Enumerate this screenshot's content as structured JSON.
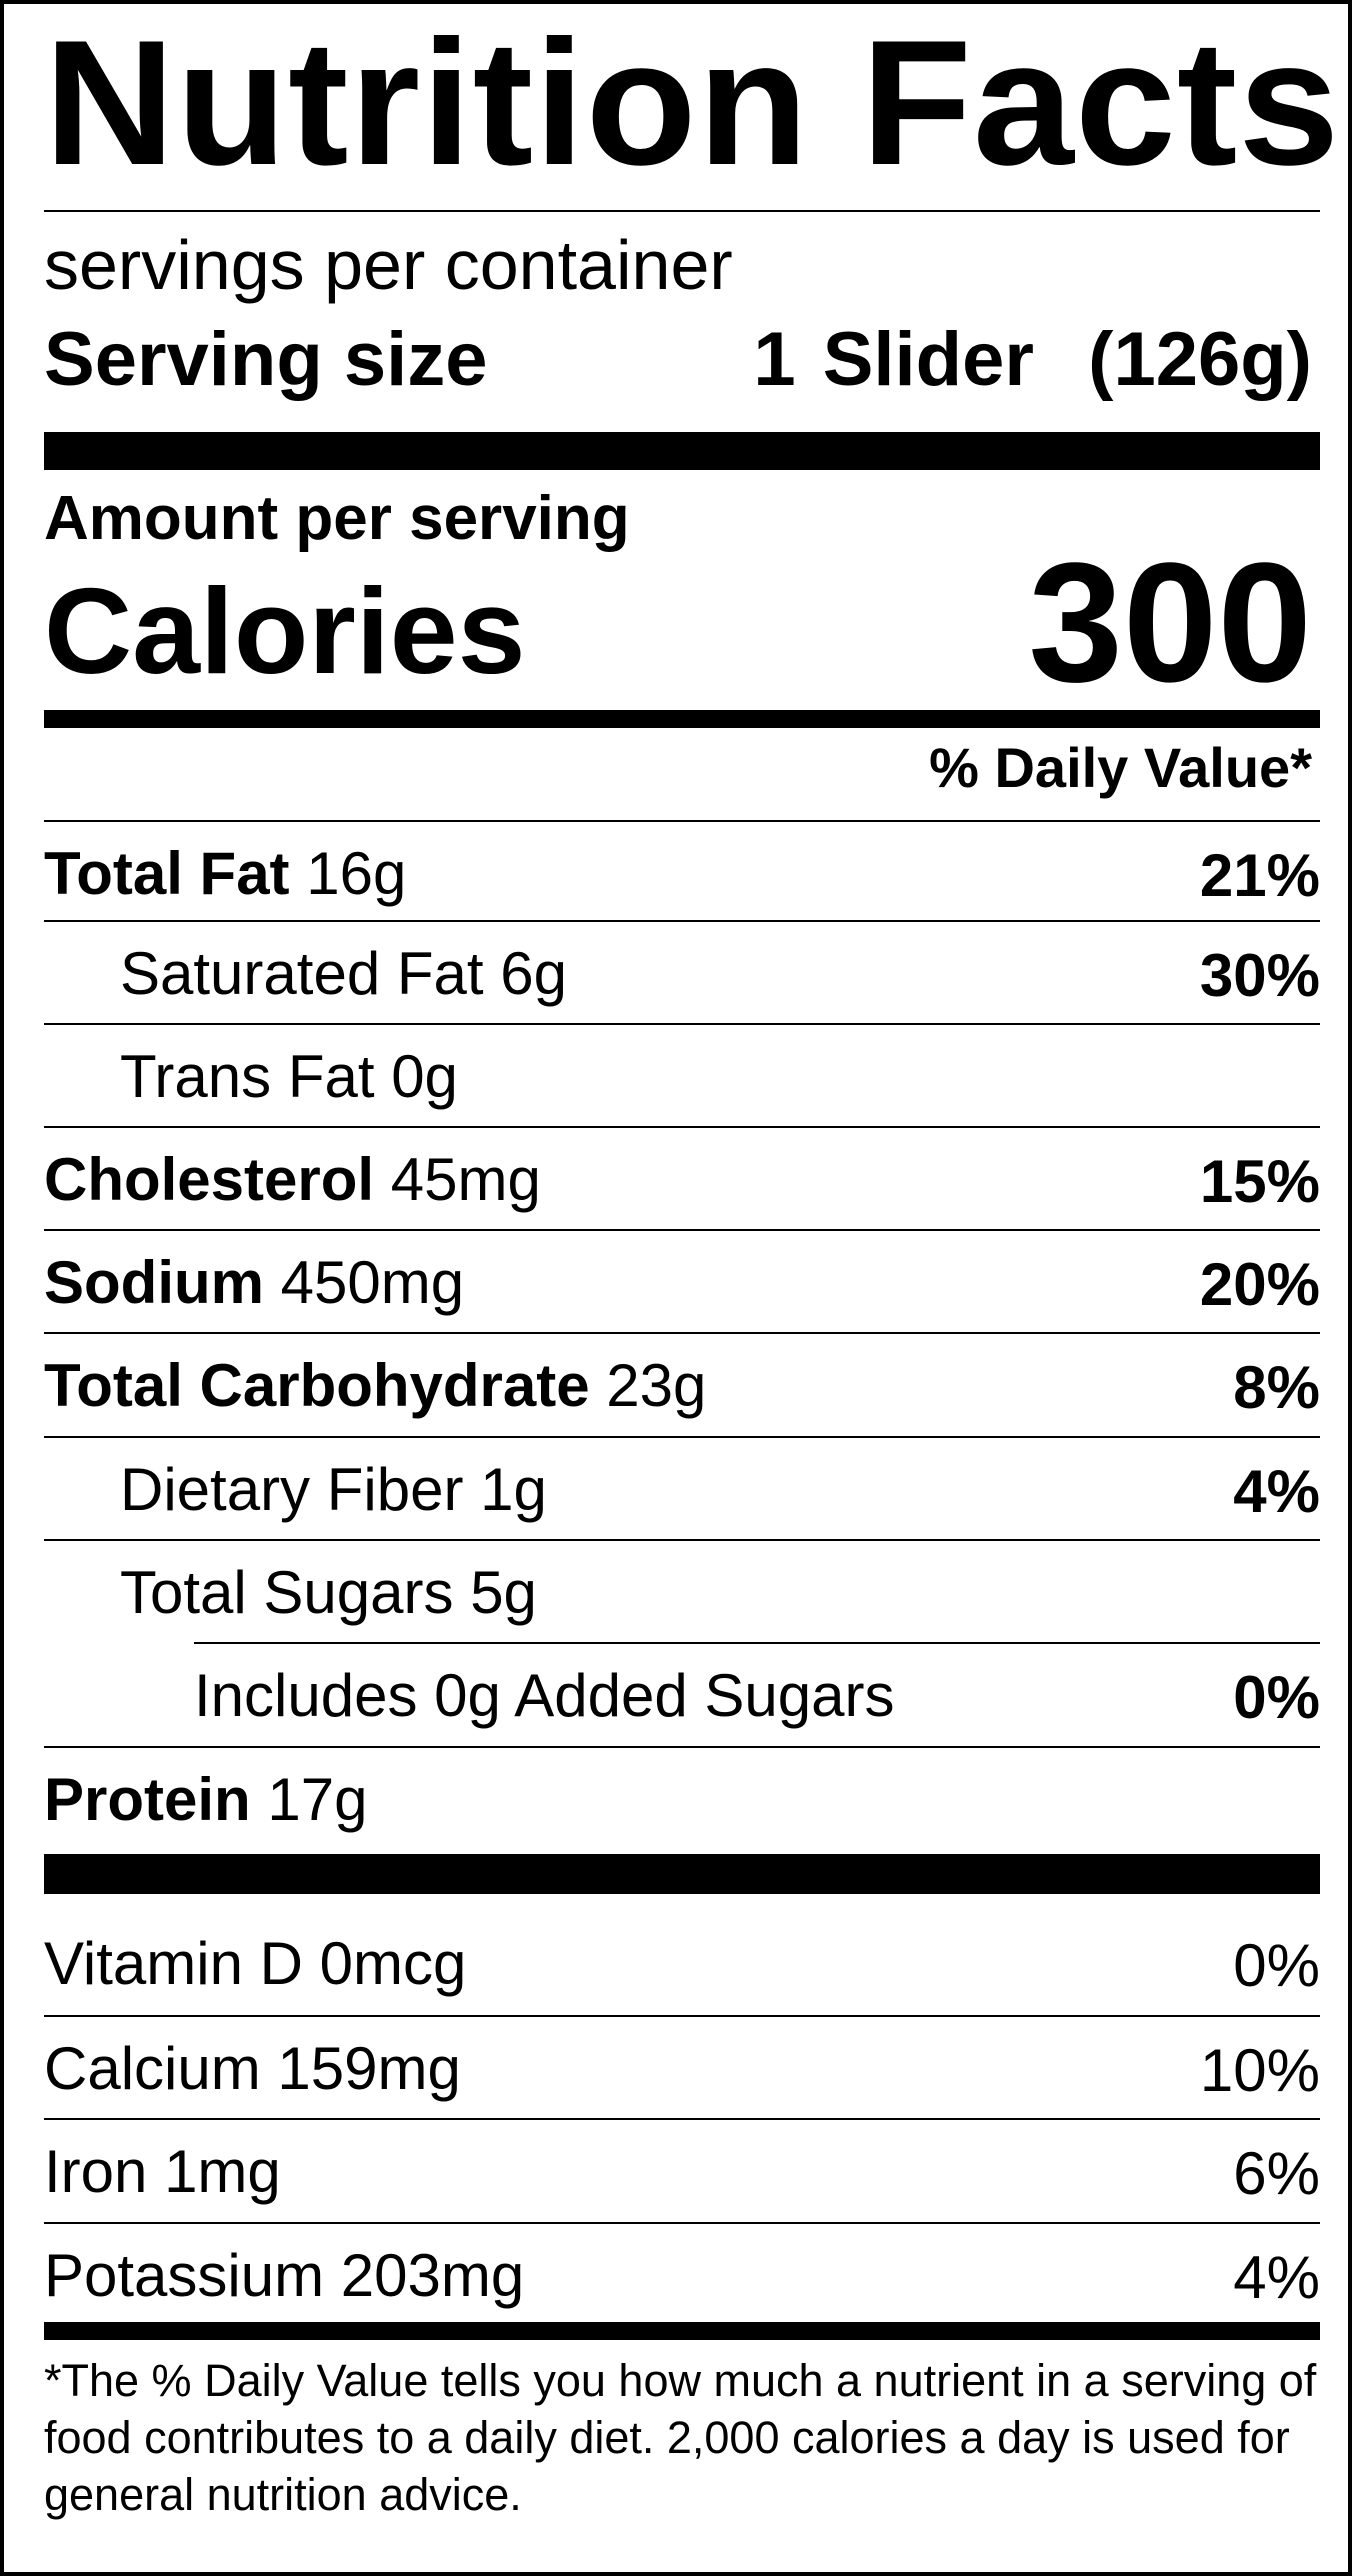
{
  "title": "Nutrition Facts",
  "servings_per_container": "servings per container",
  "serving_size": {
    "label": "Serving size",
    "value": "1 Slider  (126g)"
  },
  "amount_per_serving": "Amount per serving",
  "calories": {
    "label": "Calories",
    "value": "300"
  },
  "daily_value_header": "% Daily Value*",
  "nutrients": [
    {
      "name": "Total Fat",
      "amount": "16g",
      "dv": "21%"
    },
    {
      "name": "Saturated Fat",
      "amount": "6g",
      "dv": "30%"
    },
    {
      "name": "Trans Fat",
      "amount": "0g",
      "dv": ""
    },
    {
      "name": "Cholesterol",
      "amount": "45mg",
      "dv": "15%"
    },
    {
      "name": "Sodium",
      "amount": "450mg",
      "dv": "20%"
    },
    {
      "name": "Total Carbohydrate",
      "amount": "23g",
      "dv": "8%"
    },
    {
      "name": "Dietary Fiber",
      "amount": "1g",
      "dv": "4%"
    },
    {
      "name": "Total Sugars",
      "amount": "5g",
      "dv": ""
    },
    {
      "name": "Includes 0g Added Sugars",
      "amount": "",
      "dv": "0%"
    },
    {
      "name": "Protein",
      "amount": "17g",
      "dv": ""
    }
  ],
  "vitamins": [
    {
      "name": "Vitamin D",
      "amount": "0mcg",
      "dv": "0%"
    },
    {
      "name": "Calcium",
      "amount": "159mg",
      "dv": "10%"
    },
    {
      "name": "Iron",
      "amount": "1mg",
      "dv": "6%"
    },
    {
      "name": "Potassium",
      "amount": "203mg",
      "dv": "4%"
    }
  ],
  "footnote": "*The % Daily Value tells you how much a nutrient in a serving of food contributes to a daily diet. 2,000 calories a day is used for general nutrition advice."
}
